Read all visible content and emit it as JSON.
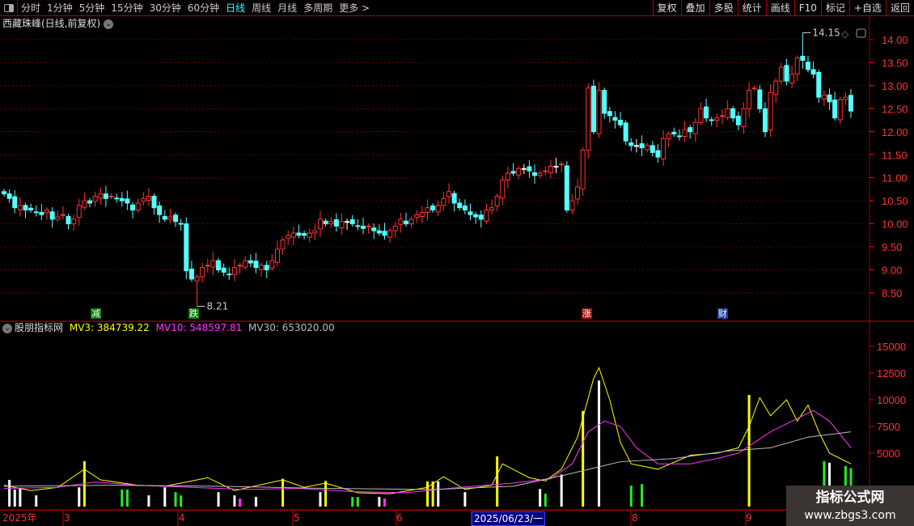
{
  "toolbar": {
    "periods": [
      "分时",
      "1分钟",
      "5分钟",
      "15分钟",
      "30分钟",
      "60分钟",
      "日线",
      "周线",
      "月线",
      "多周期",
      "更多 >"
    ],
    "active_period": "日线",
    "tools": [
      "复权",
      "叠加",
      "多股",
      "统计",
      "画线",
      "F10",
      "标记",
      "+自选",
      "返回"
    ]
  },
  "main": {
    "title": "西藏珠峰(日线,前复权)",
    "high_label": "14.15",
    "low_label": "8.21",
    "price_axis": [
      "14.00",
      "13.50",
      "13.00",
      "12.50",
      "12.00",
      "11.50",
      "11.00",
      "10.50",
      "10.00",
      "9.50",
      "9.00",
      "8.50"
    ],
    "markers": [
      {
        "text": "减",
        "color": "#0a7a0a"
      },
      {
        "text": "跌",
        "color": "#0a7a0a"
      },
      {
        "text": "涨",
        "color": "#a01010"
      },
      {
        "text": "财",
        "color": "#1a3f9a"
      }
    ]
  },
  "indicator": {
    "name": "股朋指标网",
    "mv3": "MV3: 384739.22",
    "mv10": "MV10: 548597.81",
    "mv30": "MV30: 653020.00",
    "axis": [
      "15000",
      "12500",
      "10000",
      "7500",
      "5000"
    ]
  },
  "timeline": {
    "labels": [
      "2025年",
      "3",
      "4",
      "5",
      "6",
      "8",
      "9"
    ],
    "selected": "2025/06/23/一"
  },
  "watermark": {
    "title": "指标公式网",
    "url": "www.zbgs3.com"
  },
  "colors": {
    "up": "#ff3333",
    "down": "#55ffff",
    "mv3": "#ffff00",
    "mv10": "#ff33ff",
    "mv30": "#bbbbbb",
    "grid": "#a00000"
  },
  "chart_data": {
    "type": "candlestick",
    "price_ylim": [
      8.2,
      14.3
    ],
    "closes": [
      10.65,
      10.55,
      10.35,
      10.4,
      10.3,
      10.3,
      10.25,
      10.2,
      10.3,
      10.1,
      10.15,
      10.2,
      10.0,
      10.1,
      10.4,
      10.5,
      10.45,
      10.6,
      10.65,
      10.55,
      10.6,
      10.55,
      10.5,
      10.45,
      10.3,
      10.45,
      10.55,
      10.6,
      10.35,
      10.2,
      10.1,
      10.15,
      10.05,
      10.0,
      8.98,
      8.8,
      8.85,
      9.05,
      9.1,
      9.2,
      9.0,
      8.95,
      8.9,
      9.05,
      9.1,
      9.2,
      9.15,
      9.05,
      9.1,
      9.0,
      9.2,
      9.45,
      9.65,
      9.75,
      9.8,
      9.75,
      9.75,
      9.8,
      9.85,
      10.1,
      10.0,
      10.05,
      9.95,
      10.05,
      10.05,
      10.0,
      9.95,
      9.9,
      9.95,
      9.85,
      9.8,
      9.75,
      9.85,
      9.95,
      10.1,
      10.0,
      10.1,
      10.2,
      10.25,
      10.35,
      10.3,
      10.4,
      10.55,
      10.7,
      10.45,
      10.35,
      10.3,
      10.2,
      10.15,
      10.1,
      10.3,
      10.35,
      10.6,
      10.95,
      11.1,
      11.1,
      11.2,
      11.2,
      11.15,
      11.05,
      11.1,
      11.15,
      11.25,
      11.25,
      11.3,
      10.3,
      10.5,
      10.8,
      11.6,
      12.95,
      12.0,
      12.9,
      12.4,
      12.35,
      12.25,
      12.15,
      11.8,
      11.7,
      11.7,
      11.65,
      11.7,
      11.55,
      11.45,
      11.85,
      11.95,
      11.95,
      11.9,
      12.05,
      12.0,
      12.2,
      12.5,
      12.3,
      12.25,
      12.3,
      12.35,
      12.5,
      12.3,
      12.15,
      12.5,
      12.9,
      12.95,
      12.5,
      12.0,
      12.85,
      13.1,
      13.4,
      13.1,
      13.25,
      13.6,
      13.55,
      13.35,
      13.25,
      12.75,
      12.8,
      12.65,
      12.3,
      12.7,
      12.75,
      12.45
    ],
    "high": 14.15,
    "low": 8.21,
    "volume_ylim": [
      0,
      16500
    ],
    "volume_bars": [
      [
        1,
        2500,
        "white"
      ],
      [
        2,
        1600,
        "white"
      ],
      [
        3,
        1750,
        "white"
      ],
      [
        6,
        1050,
        "white"
      ],
      [
        14,
        1800,
        "white"
      ],
      [
        15,
        4250,
        "yellow"
      ],
      [
        22,
        1600,
        "green"
      ],
      [
        23,
        1600,
        "green"
      ],
      [
        27,
        1050,
        "white"
      ],
      [
        30,
        1800,
        "white"
      ],
      [
        32,
        1350,
        "green"
      ],
      [
        33,
        1050,
        "green"
      ],
      [
        40,
        1350,
        "white"
      ],
      [
        43,
        1050,
        "white"
      ],
      [
        44,
        750,
        "magenta"
      ],
      [
        47,
        900,
        "white"
      ],
      [
        52,
        2600,
        "yellow"
      ],
      [
        59,
        1350,
        "white"
      ],
      [
        60,
        2400,
        "yellow"
      ],
      [
        65,
        900,
        "green"
      ],
      [
        66,
        900,
        "green"
      ],
      [
        70,
        900,
        "white"
      ],
      [
        71,
        750,
        "magenta"
      ],
      [
        79,
        2350,
        "yellow"
      ],
      [
        80,
        2350,
        "yellow"
      ],
      [
        81,
        2350,
        "white"
      ],
      [
        86,
        1350,
        "white"
      ],
      [
        92,
        4700,
        "yellow"
      ],
      [
        100,
        1650,
        "white"
      ],
      [
        101,
        1200,
        "green"
      ],
      [
        104,
        3000,
        "white"
      ],
      [
        108,
        8950,
        "yellow"
      ],
      [
        111,
        11800,
        "white"
      ],
      [
        117,
        1950,
        "green"
      ],
      [
        119,
        2100,
        "green"
      ],
      [
        139,
        10450,
        "yellow"
      ],
      [
        153,
        4250,
        "green"
      ],
      [
        154,
        4100,
        "white"
      ],
      [
        157,
        3800,
        "green"
      ],
      [
        158,
        3600,
        "green"
      ]
    ],
    "series": [
      {
        "name": "MV3",
        "points": [
          [
            0,
            2000
          ],
          [
            5,
            1500
          ],
          [
            10,
            1800
          ],
          [
            15,
            3500
          ],
          [
            18,
            2500
          ],
          [
            25,
            2000
          ],
          [
            30,
            1900
          ],
          [
            38,
            2700
          ],
          [
            43,
            1500
          ],
          [
            52,
            2500
          ],
          [
            56,
            1800
          ],
          [
            60,
            2200
          ],
          [
            66,
            1300
          ],
          [
            72,
            1200
          ],
          [
            79,
            1800
          ],
          [
            82,
            2800
          ],
          [
            86,
            1600
          ],
          [
            91,
            2000
          ],
          [
            93,
            4000
          ],
          [
            98,
            2700
          ],
          [
            101,
            2400
          ],
          [
            104,
            3500
          ],
          [
            107,
            6500
          ],
          [
            110,
            12000
          ],
          [
            111,
            13000
          ],
          [
            113,
            10000
          ],
          [
            115,
            6000
          ],
          [
            117,
            4000
          ],
          [
            122,
            3500
          ],
          [
            128,
            4800
          ],
          [
            133,
            5000
          ],
          [
            137,
            5500
          ],
          [
            139,
            7500
          ],
          [
            141,
            10200
          ],
          [
            143,
            8500
          ],
          [
            146,
            10000
          ],
          [
            148,
            8000
          ],
          [
            150,
            9500
          ],
          [
            152,
            7000
          ],
          [
            154,
            5000
          ],
          [
            158,
            4000
          ]
        ]
      },
      {
        "name": "MV10",
        "points": [
          [
            0,
            1700
          ],
          [
            10,
            1800
          ],
          [
            17,
            2300
          ],
          [
            25,
            2000
          ],
          [
            35,
            1800
          ],
          [
            45,
            1600
          ],
          [
            55,
            1700
          ],
          [
            65,
            1400
          ],
          [
            75,
            1300
          ],
          [
            85,
            1800
          ],
          [
            95,
            2200
          ],
          [
            102,
            2600
          ],
          [
            106,
            4000
          ],
          [
            109,
            7000
          ],
          [
            112,
            8000
          ],
          [
            115,
            7500
          ],
          [
            118,
            5500
          ],
          [
            122,
            4000
          ],
          [
            128,
            4000
          ],
          [
            133,
            4500
          ],
          [
            137,
            5000
          ],
          [
            140,
            6000
          ],
          [
            143,
            7000
          ],
          [
            147,
            8000
          ],
          [
            151,
            9000
          ],
          [
            154,
            8000
          ],
          [
            158,
            5500
          ]
        ]
      },
      {
        "name": "MV30",
        "points": [
          [
            0,
            1900
          ],
          [
            20,
            2000
          ],
          [
            40,
            1900
          ],
          [
            60,
            1700
          ],
          [
            80,
            1600
          ],
          [
            95,
            1900
          ],
          [
            105,
            3000
          ],
          [
            115,
            4200
          ],
          [
            125,
            4500
          ],
          [
            135,
            5200
          ],
          [
            143,
            5500
          ],
          [
            150,
            6500
          ],
          [
            158,
            7000
          ]
        ]
      }
    ]
  }
}
